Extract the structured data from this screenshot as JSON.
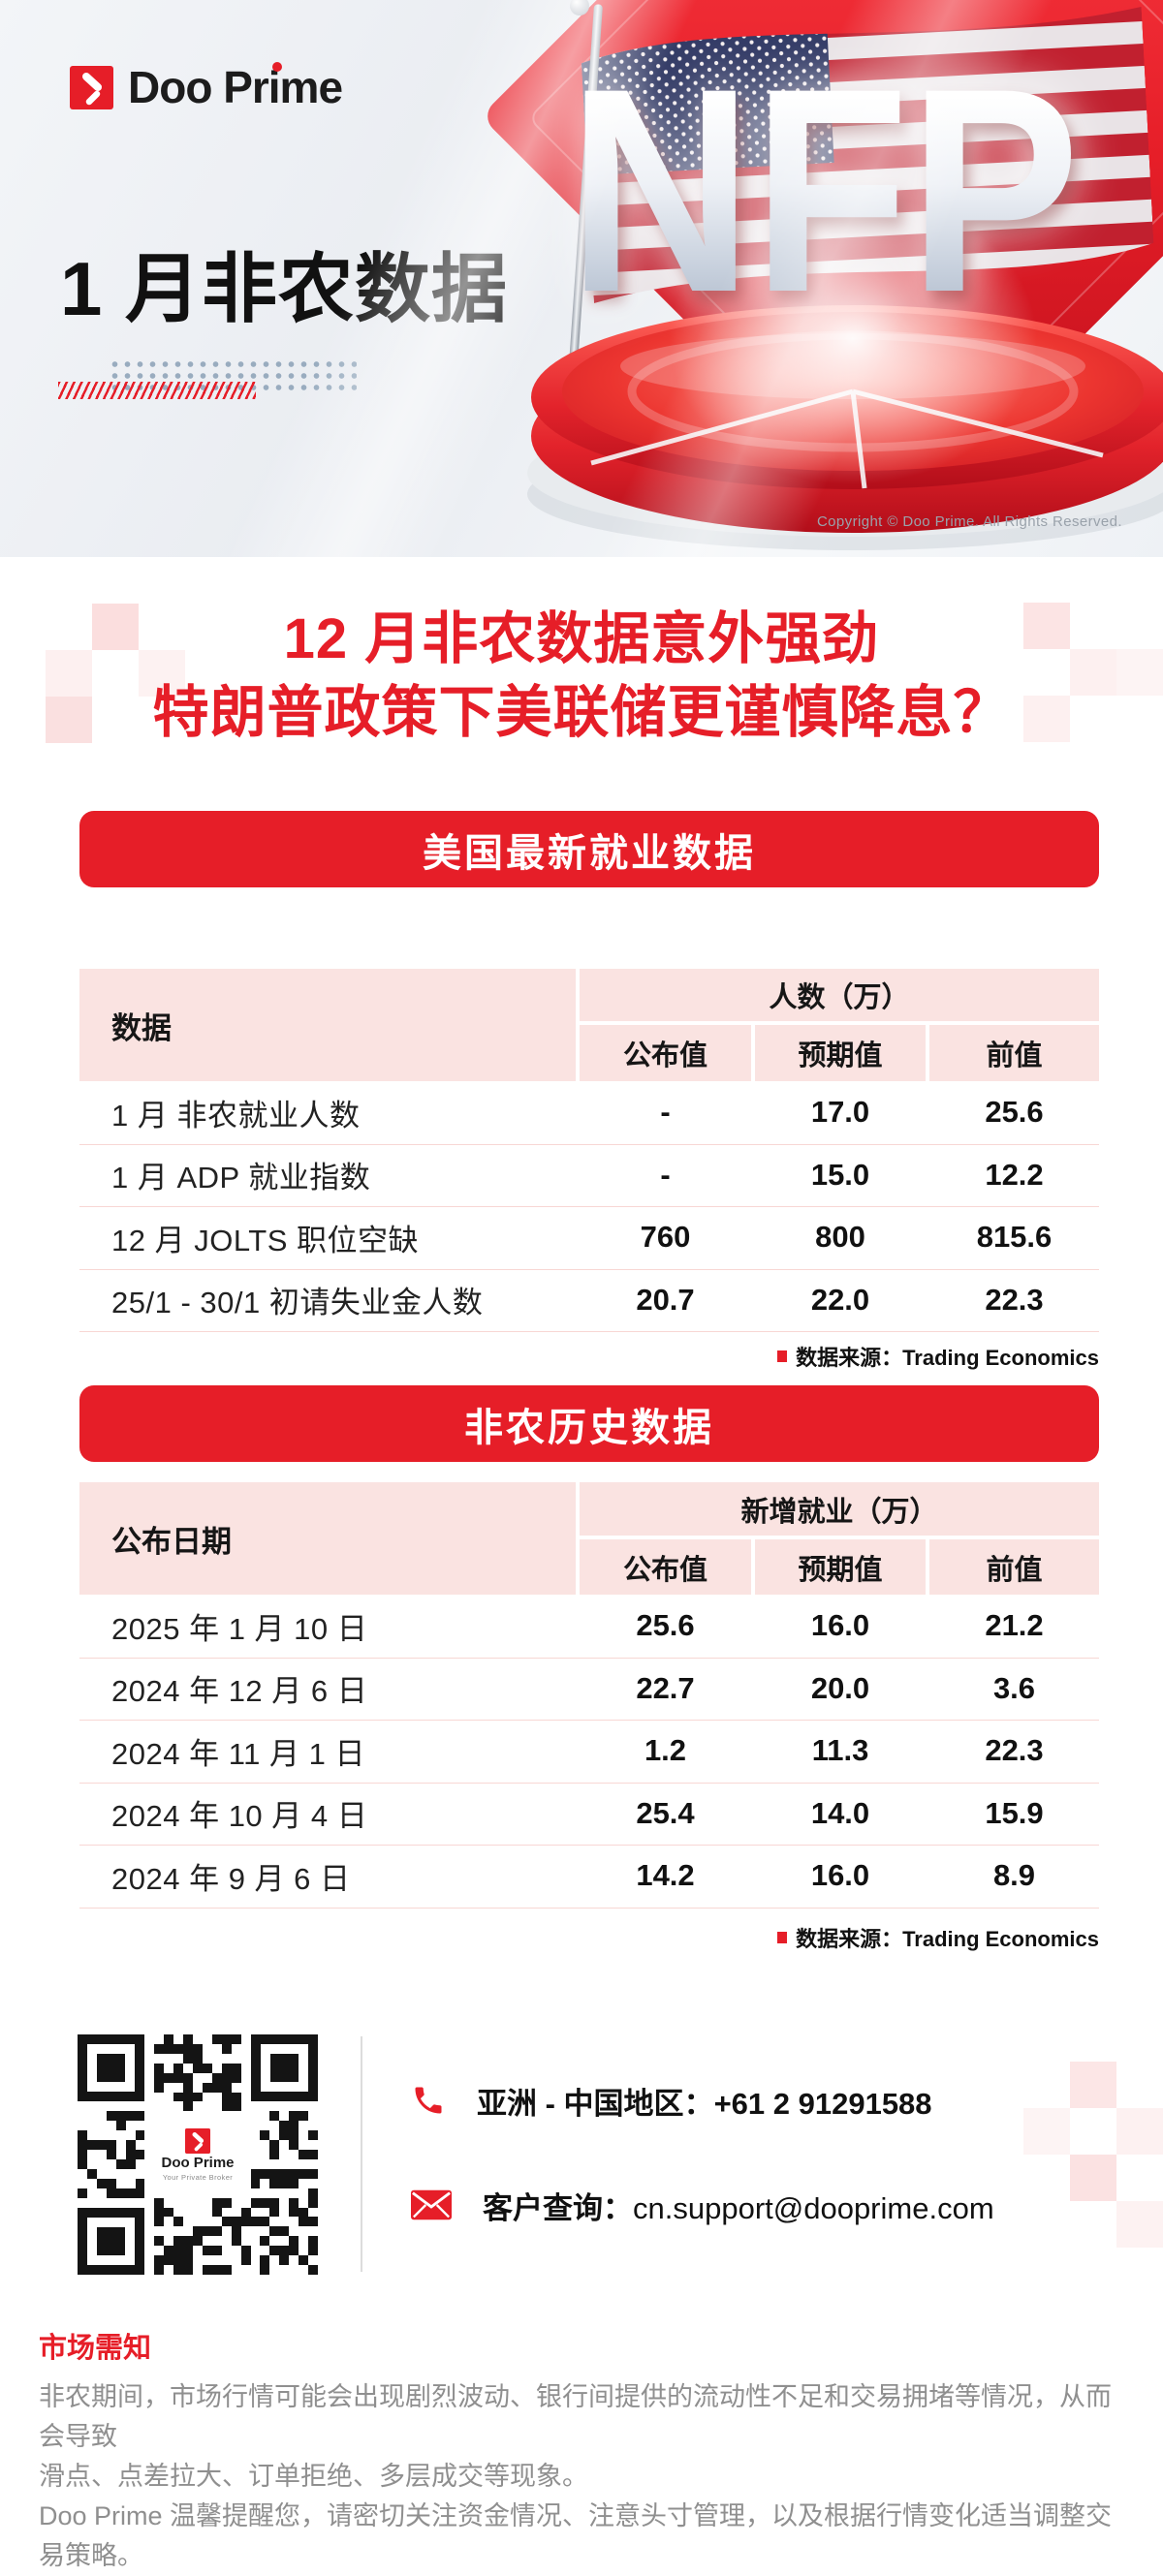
{
  "colors": {
    "brand_red": "#e61e28",
    "pink_cell": "#fae3e1",
    "row_divider": "#f8d7d4",
    "text_dark": "#111111",
    "text_gray": "#8f8f8f",
    "copyright_gray": "#9aa2ab",
    "dot_decor_blue": "#8aa0b6"
  },
  "brand": {
    "logo_text": "Doo Prime"
  },
  "hero": {
    "title": "1 月非农数据",
    "nfp_text": "NFP",
    "copyright": "Copyright © Doo Prime. All Rights Reserved."
  },
  "headline": {
    "line1": "12 月非农数据意外强劲",
    "line2": "特朗普政策下美联储更谨慎降息？"
  },
  "section1": {
    "banner": "美国最新就业数据",
    "table": {
      "col_header_left": "数据",
      "group_header": "人数（万）",
      "sub_headers": [
        "公布值",
        "预期值",
        "前值"
      ],
      "rows": [
        {
          "label": "1 月 非农就业人数",
          "values": [
            "-",
            "17.0",
            "25.6"
          ]
        },
        {
          "label": "1 月 ADP 就业指数",
          "values": [
            "-",
            "15.0",
            "12.2"
          ]
        },
        {
          "label": "12 月 JOLTS 职位空缺",
          "values": [
            "760",
            "800",
            "815.6"
          ]
        },
        {
          "label": "25/1 - 30/1 初请失业金人数",
          "values": [
            "20.7",
            "22.0",
            "22.3"
          ]
        }
      ]
    },
    "source": "数据来源：Trading Economics"
  },
  "section2": {
    "banner": "非农历史数据",
    "table": {
      "col_header_left": "公布日期",
      "group_header": "新增就业（万）",
      "sub_headers": [
        "公布值",
        "预期值",
        "前值"
      ],
      "rows": [
        {
          "label": "2025 年 1 月 10 日",
          "values": [
            "25.6",
            "16.0",
            "21.2"
          ]
        },
        {
          "label": "2024 年 12 月 6 日",
          "values": [
            "22.7",
            "20.0",
            "3.6"
          ]
        },
        {
          "label": "2024 年 11 月 1 日",
          "values": [
            "1.2",
            "11.3",
            "22.3"
          ]
        },
        {
          "label": "2024 年 10 月 4 日",
          "values": [
            "25.4",
            "14.0",
            "15.9"
          ]
        },
        {
          "label": "2024 年 9 月 6 日",
          "values": [
            "14.2",
            "16.0",
            "8.9"
          ]
        }
      ]
    },
    "source": "数据来源：Trading Economics"
  },
  "contact": {
    "phone_label": "亚洲 - 中国地区：",
    "phone_number": "+61 2 91291588",
    "email_label": "客户查询：",
    "email": "cn.support@dooprime.com",
    "qr": {
      "logo_text": "Doo Prime",
      "tagline": "Your Private Broker"
    }
  },
  "disclaimer": {
    "title": "市场需知",
    "lines": [
      "非农期间，市场行情可能会出现剧烈波动、银行间提供的流动性不足和交易拥堵等情况，从而会导致",
      "滑点、点差拉大、订单拒绝、多层成交等现象。",
      "Doo Prime 温馨提醒您，请密切关注资金情况、注意头寸管理，以及根据行情变化适当调整交易策略。"
    ]
  }
}
